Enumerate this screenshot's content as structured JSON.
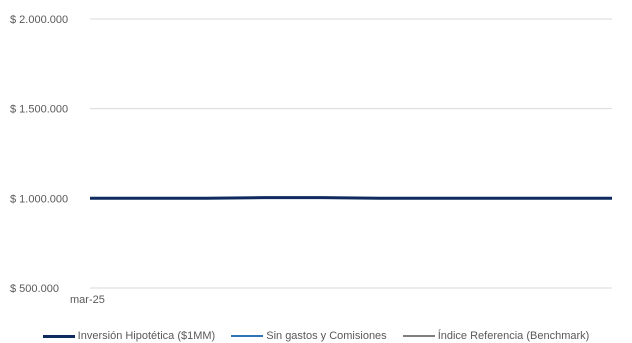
{
  "chart_data": {
    "type": "line",
    "title": "",
    "xlabel": "",
    "ylabel": "",
    "x_tick_labels": [
      "mar-25"
    ],
    "y_ticks": [
      500000,
      1000000,
      1500000,
      2000000
    ],
    "y_tick_labels": [
      "$ 500.000",
      "$ 1.000.000",
      "$ 1.500.000",
      "$ 2.000.000"
    ],
    "ylim": [
      500000,
      2000000
    ],
    "grid": true,
    "legend_position": "bottom",
    "series": [
      {
        "name": "Inversión Hipotética ($1MM)",
        "color": "#0f2a5e",
        "values": [
          1000000,
          1000000,
          1000000,
          1004000,
          1004000,
          1000000,
          1000000,
          1000000,
          1000000,
          1000000
        ]
      },
      {
        "name": "Sin gastos y Comisiones",
        "color": "#2e75b6",
        "values": [
          1000000,
          1000000,
          1000000,
          1004000,
          1004000,
          1000000,
          1000000,
          1000000,
          1000000,
          1000000
        ]
      },
      {
        "name": "Índice Referencia (Benchmark)",
        "color": "#7f7f7f",
        "values": [
          1000000,
          1000000,
          1000000,
          1002000,
          1002000,
          1000000,
          1000000,
          1000000,
          1000000,
          1000000
        ]
      }
    ]
  }
}
